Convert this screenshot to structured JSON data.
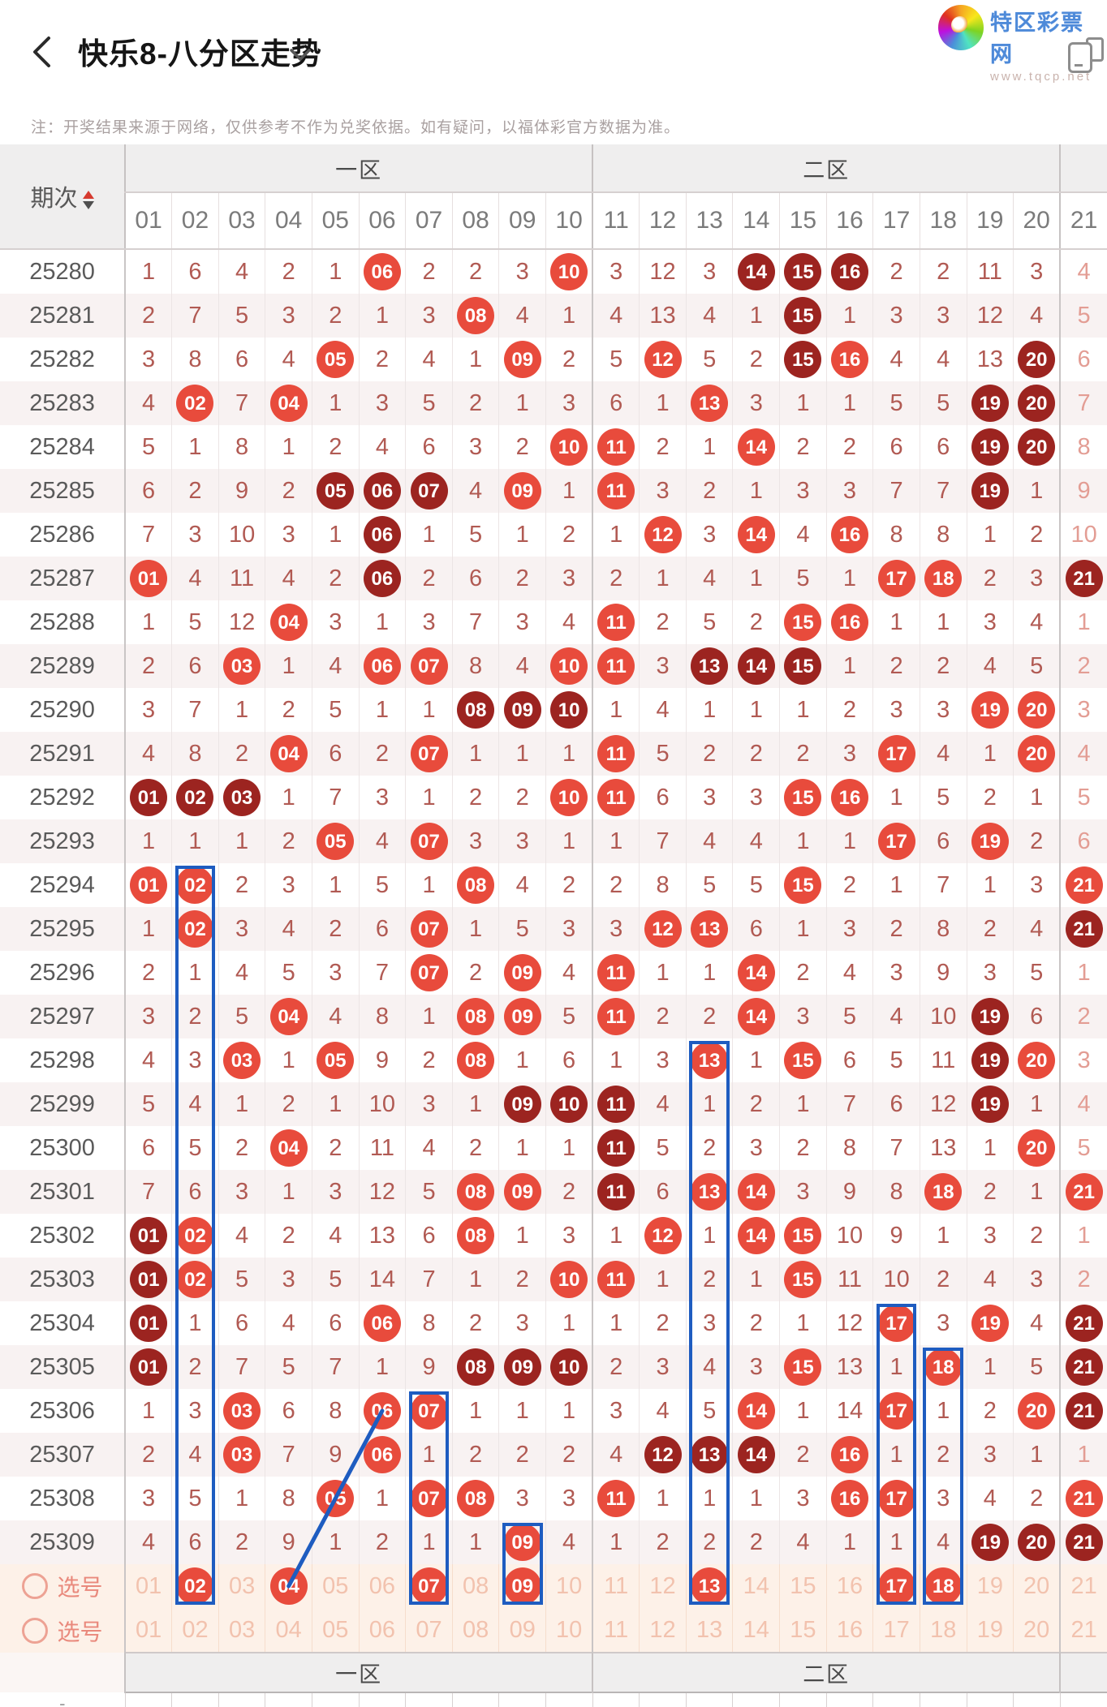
{
  "header": {
    "title": "快乐8-八分区走势",
    "brand_name": "特区彩票网",
    "brand_url": "www.tqcp.net"
  },
  "note": "注：开奖结果来源于网络，仅供参考不作为兑奖依据。如有疑问，以福体彩官方数据为准。",
  "colors": {
    "ball": "#e84b3c",
    "ball_dark": "#9c2420",
    "accent_blue": "#1e5cc0",
    "plain_text": "#b15a53"
  },
  "table": {
    "period_header": "期次",
    "zones": [
      {
        "label": "一区",
        "span": 10
      },
      {
        "label": "二区",
        "span": 10
      },
      {
        "label": "",
        "span": 1
      }
    ],
    "columns": [
      "01",
      "02",
      "03",
      "04",
      "05",
      "06",
      "07",
      "08",
      "09",
      "10",
      "11",
      "12",
      "13",
      "14",
      "15",
      "16",
      "17",
      "18",
      "19",
      "20",
      "21"
    ],
    "rows": [
      {
        "period": "25280",
        "values": [
          "1",
          "6",
          "4",
          "2",
          "1",
          "06",
          "2",
          "2",
          "3",
          "10",
          "3",
          "12",
          "3",
          "14",
          "15",
          "16",
          "2",
          "2",
          "11",
          "3",
          "4"
        ],
        "marks": "ppppprppprpppdddppppp"
      },
      {
        "period": "25281",
        "values": [
          "2",
          "7",
          "5",
          "3",
          "2",
          "1",
          "3",
          "08",
          "4",
          "1",
          "4",
          "13",
          "4",
          "1",
          "15",
          "1",
          "3",
          "3",
          "12",
          "4",
          "5"
        ],
        "marks": "ppppppprppppppdpppppp"
      },
      {
        "period": "25282",
        "values": [
          "3",
          "8",
          "6",
          "4",
          "05",
          "2",
          "4",
          "1",
          "09",
          "2",
          "5",
          "12",
          "5",
          "2",
          "15",
          "16",
          "4",
          "4",
          "13",
          "20",
          "6"
        ],
        "marks": "pppprppprpprppdrpppdp"
      },
      {
        "period": "25283",
        "values": [
          "4",
          "02",
          "7",
          "04",
          "1",
          "3",
          "5",
          "2",
          "1",
          "3",
          "6",
          "1",
          "13",
          "3",
          "1",
          "1",
          "5",
          "5",
          "19",
          "20",
          "7"
        ],
        "marks": "prprpppppppprpppppddp"
      },
      {
        "period": "25284",
        "values": [
          "5",
          "1",
          "8",
          "1",
          "2",
          "4",
          "6",
          "3",
          "2",
          "10",
          "11",
          "2",
          "1",
          "14",
          "2",
          "2",
          "6",
          "6",
          "19",
          "20",
          "8"
        ],
        "marks": "ppppppppprrpprppppddp"
      },
      {
        "period": "25285",
        "values": [
          "6",
          "2",
          "9",
          "2",
          "05",
          "06",
          "07",
          "4",
          "09",
          "1",
          "11",
          "3",
          "2",
          "1",
          "3",
          "3",
          "7",
          "7",
          "19",
          "1",
          "9"
        ],
        "marks": "ppppdddprprpppppppdpp"
      },
      {
        "period": "25286",
        "values": [
          "7",
          "3",
          "10",
          "3",
          "1",
          "06",
          "1",
          "5",
          "1",
          "2",
          "1",
          "12",
          "3",
          "14",
          "4",
          "16",
          "8",
          "8",
          "1",
          "2",
          "10"
        ],
        "marks": "pppppdppppprprprppppp"
      },
      {
        "period": "25287",
        "values": [
          "01",
          "4",
          "11",
          "4",
          "2",
          "06",
          "2",
          "6",
          "2",
          "3",
          "2",
          "1",
          "4",
          "1",
          "5",
          "1",
          "17",
          "18",
          "2",
          "3",
          "21"
        ],
        "marks": "rppppdpppppppppprrppd"
      },
      {
        "period": "25288",
        "values": [
          "1",
          "5",
          "12",
          "04",
          "3",
          "1",
          "3",
          "7",
          "3",
          "4",
          "11",
          "2",
          "5",
          "2",
          "15",
          "16",
          "1",
          "1",
          "3",
          "4",
          "1"
        ],
        "marks": "ppprpppppprppprrppppp"
      },
      {
        "period": "25289",
        "values": [
          "2",
          "6",
          "03",
          "1",
          "4",
          "06",
          "07",
          "8",
          "4",
          "10",
          "11",
          "3",
          "13",
          "14",
          "15",
          "1",
          "2",
          "2",
          "4",
          "5",
          "2"
        ],
        "marks": "pprpprrpprrpdddpppppp"
      },
      {
        "period": "25290",
        "values": [
          "3",
          "7",
          "1",
          "2",
          "5",
          "1",
          "1",
          "08",
          "09",
          "10",
          "1",
          "4",
          "1",
          "1",
          "1",
          "2",
          "3",
          "3",
          "19",
          "20",
          "3"
        ],
        "marks": "pppppppdddpppppppprrp"
      },
      {
        "period": "25291",
        "values": [
          "4",
          "8",
          "2",
          "04",
          "6",
          "2",
          "07",
          "1",
          "1",
          "1",
          "11",
          "5",
          "2",
          "2",
          "2",
          "3",
          "17",
          "4",
          "1",
          "20",
          "4"
        ],
        "marks": "ppprpprppprppppprpprp"
      },
      {
        "period": "25292",
        "values": [
          "01",
          "02",
          "03",
          "1",
          "7",
          "3",
          "1",
          "2",
          "2",
          "10",
          "11",
          "6",
          "3",
          "3",
          "15",
          "16",
          "1",
          "5",
          "2",
          "1",
          "5"
        ],
        "marks": "dddpppppprrppprrppppp"
      },
      {
        "period": "25293",
        "values": [
          "1",
          "1",
          "1",
          "2",
          "05",
          "4",
          "07",
          "3",
          "3",
          "1",
          "1",
          "7",
          "4",
          "4",
          "1",
          "1",
          "17",
          "6",
          "19",
          "2",
          "6"
        ],
        "marks": "pppprprppppppppprprpp"
      },
      {
        "period": "25294",
        "values": [
          "01",
          "02",
          "2",
          "3",
          "1",
          "5",
          "1",
          "08",
          "4",
          "2",
          "2",
          "8",
          "5",
          "5",
          "15",
          "2",
          "1",
          "7",
          "1",
          "3",
          "21"
        ],
        "marks": "rrppppprpppppprpppppr"
      },
      {
        "period": "25295",
        "values": [
          "1",
          "02",
          "3",
          "4",
          "2",
          "6",
          "07",
          "1",
          "5",
          "3",
          "3",
          "12",
          "13",
          "6",
          "1",
          "3",
          "2",
          "8",
          "2",
          "4",
          "21"
        ],
        "marks": "prpppprpppprrpppppppd"
      },
      {
        "period": "25296",
        "values": [
          "2",
          "1",
          "4",
          "5",
          "3",
          "7",
          "07",
          "2",
          "09",
          "4",
          "11",
          "1",
          "1",
          "14",
          "2",
          "4",
          "3",
          "9",
          "3",
          "5",
          "1"
        ],
        "marks": "pppppprprprpprppppppp"
      },
      {
        "period": "25297",
        "values": [
          "3",
          "2",
          "5",
          "04",
          "4",
          "8",
          "1",
          "08",
          "09",
          "5",
          "11",
          "2",
          "2",
          "14",
          "3",
          "5",
          "4",
          "10",
          "19",
          "6",
          "2"
        ],
        "marks": "ppprppprrprpprppppdpp"
      },
      {
        "period": "25298",
        "values": [
          "4",
          "3",
          "03",
          "1",
          "05",
          "9",
          "2",
          "08",
          "1",
          "6",
          "1",
          "3",
          "13",
          "1",
          "15",
          "6",
          "5",
          "11",
          "19",
          "20",
          "3"
        ],
        "marks": "pprprpprpppprprpppdrp"
      },
      {
        "period": "25299",
        "values": [
          "5",
          "4",
          "1",
          "2",
          "1",
          "10",
          "3",
          "1",
          "09",
          "10",
          "11",
          "4",
          "1",
          "2",
          "1",
          "7",
          "6",
          "12",
          "19",
          "1",
          "4"
        ],
        "marks": "ppppppppdddpppppppdpp"
      },
      {
        "period": "25300",
        "values": [
          "6",
          "5",
          "2",
          "04",
          "2",
          "11",
          "4",
          "2",
          "1",
          "1",
          "11",
          "5",
          "2",
          "3",
          "2",
          "8",
          "7",
          "13",
          "1",
          "20",
          "5"
        ],
        "marks": "ppprppppppdpppppppprp"
      },
      {
        "period": "25301",
        "values": [
          "7",
          "6",
          "3",
          "1",
          "3",
          "12",
          "5",
          "08",
          "09",
          "2",
          "11",
          "6",
          "13",
          "14",
          "3",
          "9",
          "8",
          "18",
          "2",
          "1",
          "21"
        ],
        "marks": "ppppppprrpdprrppprppr"
      },
      {
        "period": "25302",
        "values": [
          "01",
          "02",
          "4",
          "2",
          "4",
          "13",
          "6",
          "08",
          "1",
          "3",
          "1",
          "12",
          "1",
          "14",
          "15",
          "10",
          "9",
          "1",
          "3",
          "2",
          "1"
        ],
        "marks": "drppppprppprprrpppppp"
      },
      {
        "period": "25303",
        "values": [
          "01",
          "02",
          "5",
          "3",
          "5",
          "14",
          "7",
          "1",
          "2",
          "10",
          "11",
          "1",
          "2",
          "1",
          "15",
          "11",
          "10",
          "2",
          "4",
          "3",
          "2"
        ],
        "marks": "drppppppprrppprpppppp"
      },
      {
        "period": "25304",
        "values": [
          "01",
          "1",
          "6",
          "4",
          "6",
          "06",
          "8",
          "2",
          "3",
          "1",
          "1",
          "2",
          "3",
          "2",
          "1",
          "12",
          "17",
          "3",
          "19",
          "4",
          "21"
        ],
        "marks": "dpppprpppppppppprprpd"
      },
      {
        "period": "25305",
        "values": [
          "01",
          "2",
          "7",
          "5",
          "7",
          "1",
          "9",
          "08",
          "09",
          "10",
          "2",
          "3",
          "4",
          "3",
          "15",
          "13",
          "1",
          "18",
          "1",
          "5",
          "21"
        ],
        "marks": "dppppppdddpppprpprppd"
      },
      {
        "period": "25306",
        "values": [
          "1",
          "3",
          "03",
          "6",
          "8",
          "06",
          "07",
          "1",
          "1",
          "1",
          "3",
          "4",
          "5",
          "14",
          "1",
          "14",
          "17",
          "1",
          "2",
          "20",
          "21"
        ],
        "marks": "pprpprrpppppprpprpprd"
      },
      {
        "period": "25307",
        "values": [
          "2",
          "4",
          "03",
          "7",
          "9",
          "06",
          "1",
          "2",
          "2",
          "2",
          "4",
          "12",
          "13",
          "14",
          "2",
          "16",
          "1",
          "2",
          "3",
          "1",
          "1"
        ],
        "marks": "pprpprpppppdddprppppp"
      },
      {
        "period": "25308",
        "values": [
          "3",
          "5",
          "1",
          "8",
          "05",
          "1",
          "07",
          "08",
          "3",
          "3",
          "11",
          "1",
          "1",
          "1",
          "3",
          "16",
          "17",
          "3",
          "4",
          "2",
          "21"
        ],
        "marks": "pppprprrpprpppprrpppr"
      },
      {
        "period": "25309",
        "values": [
          "4",
          "6",
          "2",
          "9",
          "1",
          "2",
          "1",
          "1",
          "09",
          "4",
          "1",
          "2",
          "2",
          "2",
          "4",
          "1",
          "1",
          "4",
          "19",
          "20",
          "21"
        ],
        "marks": "pppppppprpppppppppddd"
      }
    ],
    "picks": [
      {
        "label": "选号",
        "selected": [
          2,
          4,
          7,
          9,
          13,
          17,
          18
        ]
      },
      {
        "label": "选号",
        "selected": []
      }
    ],
    "footer_zones": [
      "一区",
      "二区"
    ],
    "footer_dash": "-"
  },
  "overlays": {
    "boxes": [
      {
        "col": 2,
        "from": "25294",
        "to": "pick0"
      },
      {
        "col": 7,
        "from": "25306",
        "to": "pick0"
      },
      {
        "col": 9,
        "from": "25309",
        "to": "pick0"
      },
      {
        "col": 13,
        "from": "25298",
        "to": "pick0"
      },
      {
        "col": 17,
        "from": "25304",
        "to": "pick0"
      },
      {
        "col": 18,
        "from": "25305",
        "to": "pick0"
      }
    ],
    "line": {
      "from_row": "25306",
      "from_col": 6,
      "to_row": "pick0",
      "to_col": 4
    }
  }
}
